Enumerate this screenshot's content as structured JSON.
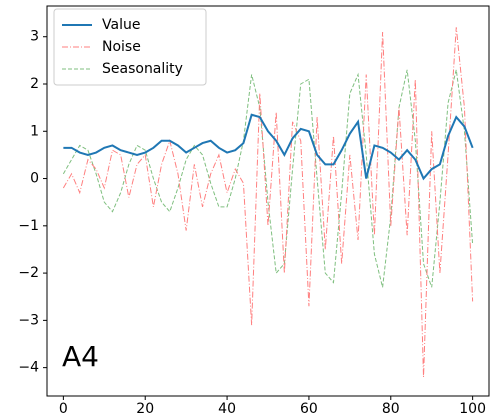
{
  "chart_data": {
    "type": "line",
    "annotation": "A4",
    "x": [
      0,
      2,
      4,
      6,
      8,
      10,
      12,
      14,
      16,
      18,
      20,
      22,
      24,
      26,
      28,
      30,
      32,
      34,
      36,
      38,
      40,
      42,
      44,
      46,
      48,
      50,
      52,
      54,
      56,
      58,
      60,
      62,
      64,
      66,
      68,
      70,
      72,
      74,
      76,
      78,
      80,
      82,
      84,
      86,
      88,
      90,
      92,
      94,
      96,
      98,
      100
    ],
    "series": [
      {
        "name": "Value",
        "color": "#1f77b4",
        "style": "solid",
        "values": [
          0.65,
          0.65,
          0.55,
          0.5,
          0.55,
          0.65,
          0.7,
          0.6,
          0.55,
          0.5,
          0.55,
          0.65,
          0.8,
          0.8,
          0.7,
          0.55,
          0.65,
          0.75,
          0.8,
          0.65,
          0.55,
          0.6,
          0.75,
          1.35,
          1.3,
          1.0,
          0.8,
          0.5,
          0.85,
          1.05,
          1.0,
          0.5,
          0.3,
          0.3,
          0.6,
          0.95,
          1.2,
          0.0,
          0.7,
          0.65,
          0.55,
          0.4,
          0.6,
          0.4,
          0.0,
          0.2,
          0.3,
          0.9,
          1.3,
          1.1,
          0.65
        ]
      },
      {
        "name": "Noise",
        "color": "#ff7f7f",
        "style": "dashdot",
        "values": [
          -0.2,
          0.1,
          -0.3,
          0.4,
          0.2,
          -0.2,
          0.6,
          0.5,
          -0.4,
          0.3,
          0.5,
          -0.6,
          0.3,
          0.8,
          0.1,
          -1.1,
          0.3,
          -0.6,
          0.1,
          0.5,
          -0.3,
          0.2,
          -0.1,
          -3.1,
          1.8,
          -1.0,
          1.4,
          -2.0,
          1.2,
          0.8,
          -2.7,
          1.3,
          -1.5,
          0.9,
          -1.8,
          0.5,
          -1.3,
          2.2,
          -1.2,
          3.1,
          -1.0,
          1.5,
          -1.2,
          2.1,
          -4.2,
          1.0,
          -2.0,
          0.5,
          3.2,
          1.5,
          -2.6
        ]
      },
      {
        "name": "Seasonality",
        "color": "#7fbf7f",
        "style": "dashed",
        "values": [
          0.1,
          0.4,
          0.7,
          0.6,
          0.1,
          -0.5,
          -0.7,
          -0.3,
          0.3,
          0.7,
          0.6,
          0.0,
          -0.5,
          -0.7,
          -0.2,
          0.4,
          0.7,
          0.5,
          -0.1,
          -0.6,
          -0.6,
          0.0,
          0.8,
          2.2,
          1.5,
          -0.5,
          -2.0,
          -1.8,
          0.2,
          2.0,
          2.1,
          0.0,
          -2.0,
          -2.2,
          -0.3,
          1.8,
          2.2,
          0.5,
          -1.6,
          -2.3,
          -0.8,
          1.5,
          2.3,
          0.8,
          -1.8,
          -2.3,
          -0.5,
          1.6,
          2.3,
          1.0,
          -1.4
        ]
      }
    ],
    "xlim": [
      -4,
      104
    ],
    "ylim": [
      -4.6,
      3.65
    ],
    "xticks": [
      0,
      20,
      40,
      60,
      80,
      100
    ],
    "yticks": [
      {
        "value": -4,
        "label": "−4"
      },
      {
        "value": -3,
        "label": "−3"
      },
      {
        "value": -2,
        "label": "−2"
      },
      {
        "value": -1,
        "label": "−1"
      },
      0,
      1,
      2,
      3
    ],
    "legend": "upper left",
    "grid": false
  }
}
